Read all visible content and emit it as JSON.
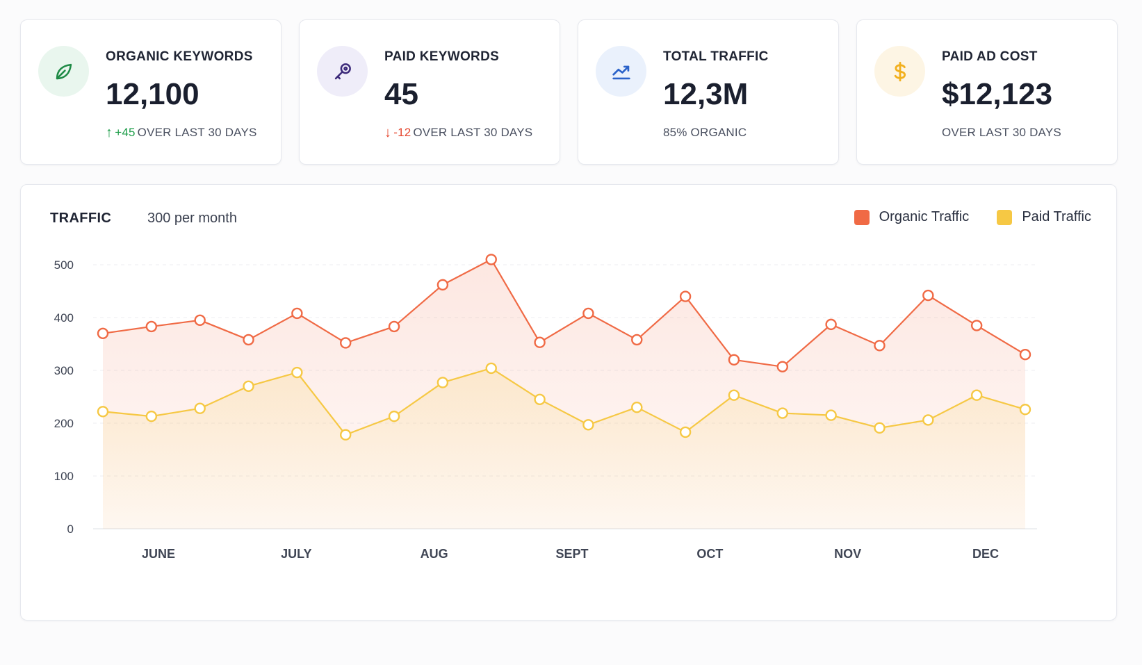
{
  "kpis": [
    {
      "label": "ORGANIC KEYWORDS",
      "value": "12,100",
      "delta": "+45",
      "delta_direction": "up",
      "foot": "OVER LAST 30 DAYS",
      "icon": "leaf-icon",
      "icon_color": "#1e8a45",
      "icon_bg": "#e9f6ee"
    },
    {
      "label": "PAID KEYWORDS",
      "value": "45",
      "delta": "-12",
      "delta_direction": "down",
      "foot": "OVER LAST 30 DAYS",
      "icon": "key-icon",
      "icon_color": "#3c2a7a",
      "icon_bg": "#efedf9"
    },
    {
      "label": "TOTAL TRAFFIC",
      "value": "12,3M",
      "delta": "",
      "delta_direction": "none",
      "foot": "85% ORGANIC",
      "icon": "trend-up-icon",
      "icon_color": "#2a62c9",
      "icon_bg": "#eaf1fc"
    },
    {
      "label": "PAID AD COST",
      "value": "$12,123",
      "delta": "",
      "delta_direction": "none",
      "foot": "OVER LAST 30 DAYS",
      "icon": "dollar-icon",
      "icon_color": "#f2b01e",
      "icon_bg": "#fdf5e4"
    }
  ],
  "chart": {
    "title": "TRAFFIC",
    "subtitle": "300 per month"
  },
  "chart_data": {
    "type": "line",
    "title": "TRAFFIC",
    "subtitle": "300 per month",
    "xlabel": "",
    "ylabel": "",
    "ylim": [
      0,
      500
    ],
    "yticks": [
      0,
      100,
      200,
      300,
      400,
      500
    ],
    "xtick_labels": [
      "JUNE",
      "JULY",
      "AUG",
      "SEPT",
      "OCT",
      "NOV",
      "DEC"
    ],
    "point_count": 20,
    "grid": true,
    "legend_position": "top-right",
    "series": [
      {
        "name": "Organic Traffic",
        "color": "#f06a45",
        "values": [
          370,
          383,
          395,
          358,
          408,
          352,
          383,
          462,
          510,
          353,
          408,
          358,
          440,
          320,
          307,
          387,
          347,
          442,
          385,
          330
        ]
      },
      {
        "name": "Paid Traffic",
        "color": "#f6c844",
        "values": [
          222,
          213,
          228,
          270,
          296,
          178,
          213,
          277,
          304,
          245,
          197,
          230,
          183,
          253,
          219,
          215,
          191,
          206,
          253,
          226
        ]
      }
    ]
  }
}
